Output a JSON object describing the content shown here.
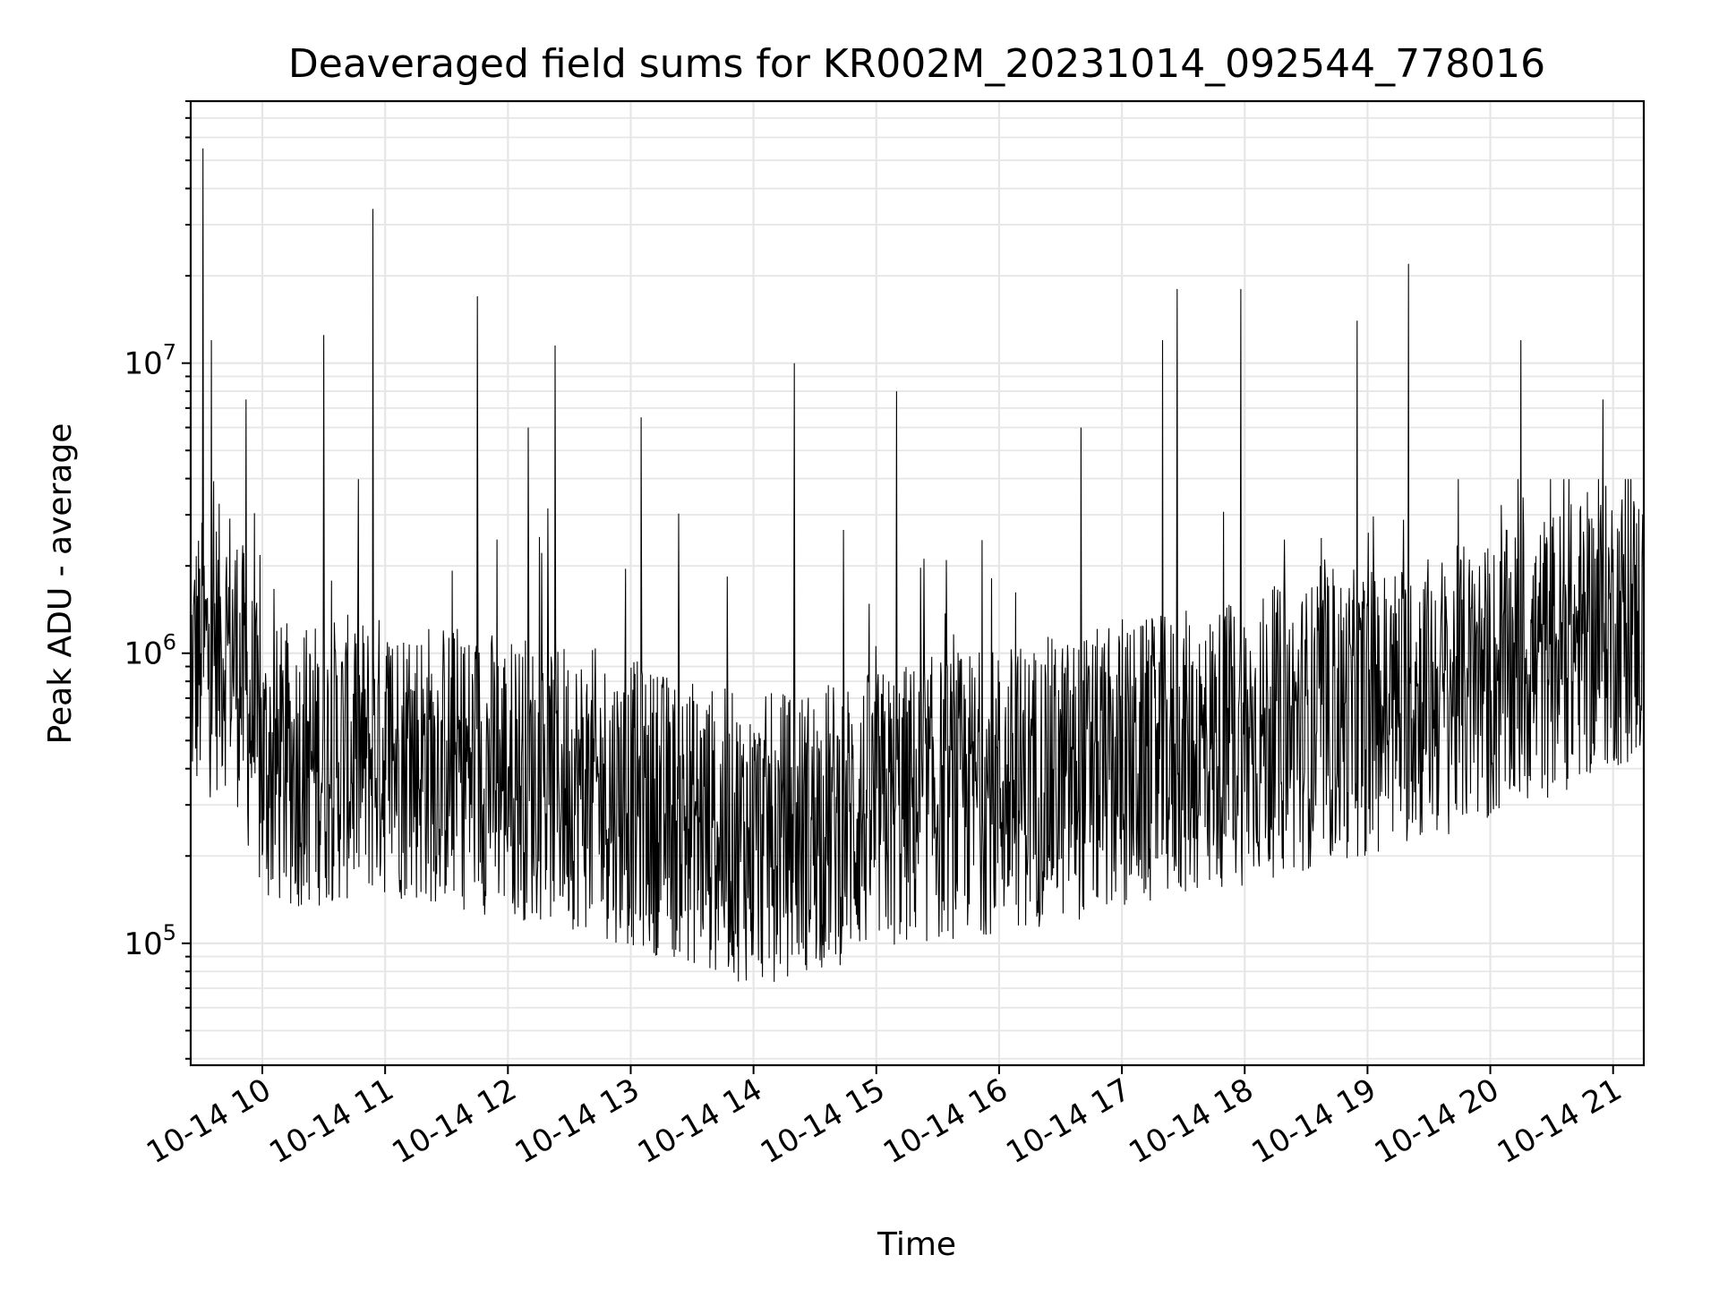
{
  "chart_data": {
    "type": "line",
    "title": "Deaveraged field sums for KR002M_20231014_092544_778016",
    "xlabel": "Time",
    "ylabel": "Peak ADU - average",
    "y_scale": "log",
    "ylim": [
      38000,
      80000000
    ],
    "xlim": [
      "2023-10-14 09:25",
      "2023-10-14 21:15"
    ],
    "grid": true,
    "legend": "none",
    "line_color": "#000000",
    "x_tick_labels": [
      "10-14 10",
      "10-14 11",
      "10-14 12",
      "10-14 13",
      "10-14 14",
      "10-14 15",
      "10-14 16",
      "10-14 17",
      "10-14 18",
      "10-14 19",
      "10-14 20",
      "10-14 21"
    ],
    "y_ticks": [
      {
        "base": "10",
        "exp": "5",
        "value": 100000
      },
      {
        "base": "10",
        "exp": "6",
        "value": 1000000
      },
      {
        "base": "10",
        "exp": "7",
        "value": 10000000
      }
    ],
    "series": [
      {
        "x": [
          "2023-10-14 09:26",
          "2023-10-14 09:30",
          "2023-10-14 09:31",
          "2023-10-14 09:32",
          "2023-10-14 09:35",
          "2023-10-14 09:40",
          "2023-10-14 09:45",
          "2023-10-14 09:52",
          "2023-10-14 10:15",
          "2023-10-14 10:30",
          "2023-10-14 10:50",
          "2023-10-14 10:54",
          "2023-10-14 11:05",
          "2023-10-14 11:30",
          "2023-10-14 11:45",
          "2023-10-14 12:00",
          "2023-10-14 12:10",
          "2023-10-14 12:20",
          "2023-10-14 12:23",
          "2023-10-14 12:35",
          "2023-10-14 13:00",
          "2023-10-14 13:05",
          "2023-10-14 13:20",
          "2023-10-14 13:40",
          "2023-10-14 14:05",
          "2023-10-14 14:20",
          "2023-10-14 14:45",
          "2023-10-14 15:10",
          "2023-10-14 15:25",
          "2023-10-14 15:45",
          "2023-10-14 16:00",
          "2023-10-14 16:40",
          "2023-10-14 17:00",
          "2023-10-14 17:20",
          "2023-10-14 17:27",
          "2023-10-14 17:40",
          "2023-10-14 17:58",
          "2023-10-14 18:20",
          "2023-10-14 18:40",
          "2023-10-14 18:55",
          "2023-10-14 19:10",
          "2023-10-14 19:20",
          "2023-10-14 19:40",
          "2023-10-14 19:55",
          "2023-10-14 20:15",
          "2023-10-14 20:40",
          "2023-10-14 20:55",
          "2023-10-14 21:05",
          "2023-10-14 21:12"
        ],
        "y": [
          800000,
          1000000,
          55000000,
          1500000,
          12000000,
          1000000,
          600000,
          7500000,
          400000,
          12500000,
          400000,
          34000000,
          400000,
          500000,
          17000000,
          400000,
          6000000,
          300000,
          11500000,
          350000,
          250000,
          6500000,
          300000,
          250000,
          200000,
          10000000,
          350000,
          8000000,
          400000,
          600000,
          500000,
          6000000,
          500000,
          12000000,
          18000000,
          400000,
          18000000,
          500000,
          300000,
          14000000,
          500000,
          22000000,
          700000,
          900000,
          12000000,
          800000,
          7500000,
          1500000,
          1400000
        ]
      }
    ]
  }
}
